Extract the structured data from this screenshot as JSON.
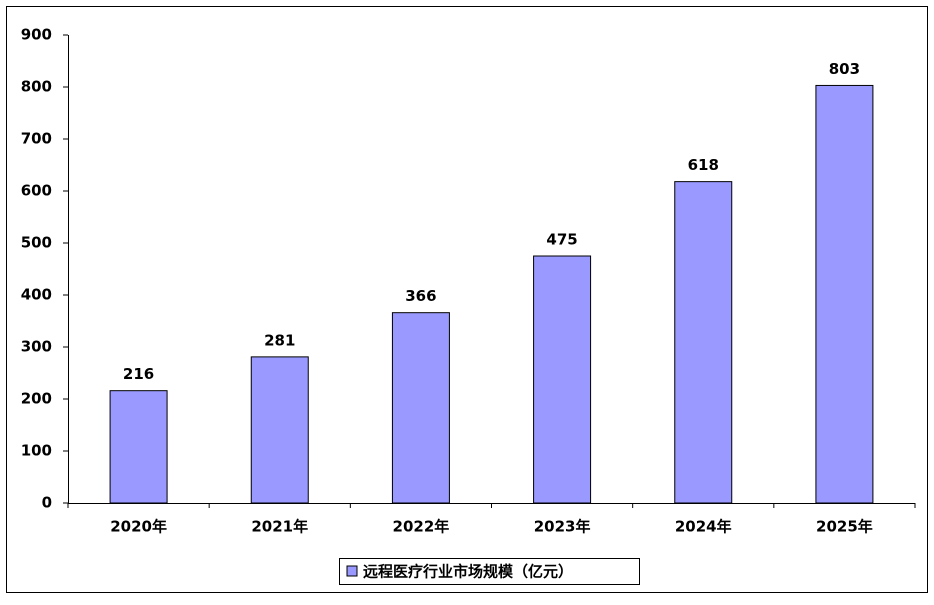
{
  "chart_data": {
    "type": "bar",
    "categories": [
      "2020年",
      "2021年",
      "2022年",
      "2023年",
      "2024年",
      "2025年"
    ],
    "series": [
      {
        "name": "远程医疗行业市场规模（亿元）",
        "color": "#9999ff",
        "values": [
          216,
          281,
          366,
          475,
          618,
          803
        ]
      }
    ],
    "ylim": [
      0,
      900
    ],
    "yticks": [
      0,
      100,
      200,
      300,
      400,
      500,
      600,
      700,
      800,
      900
    ],
    "grid": false,
    "legend": "bottom"
  }
}
